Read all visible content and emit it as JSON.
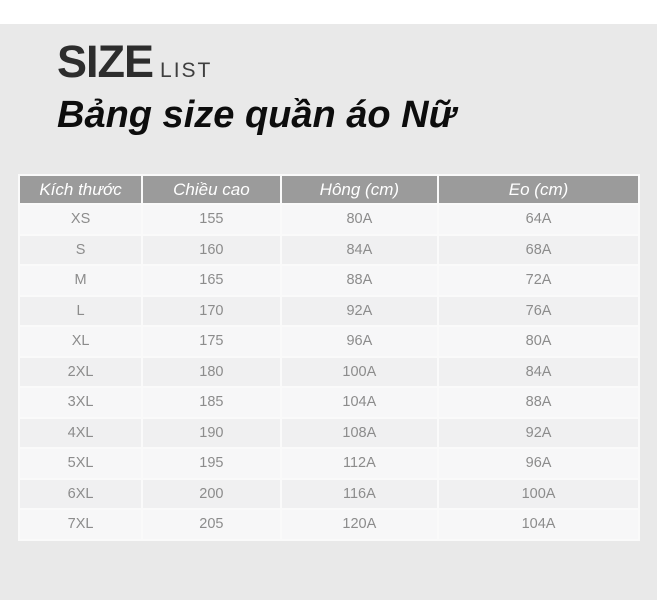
{
  "page": {
    "brand_title": "SIZE",
    "brand_subtitle": "LIST",
    "main_title": "Bảng size quần áo Nữ"
  },
  "chart_data": {
    "type": "table",
    "title": "Bảng size quần áo Nữ",
    "columns": [
      "Kích thước",
      "Chiều cao",
      "Hông (cm)",
      "Eo (cm)"
    ],
    "rows": [
      [
        "XS",
        "155",
        "80A",
        "64A"
      ],
      [
        "S",
        "160",
        "84A",
        "68A"
      ],
      [
        "M",
        "165",
        "88A",
        "72A"
      ],
      [
        "L",
        "170",
        "92A",
        "76A"
      ],
      [
        "XL",
        "175",
        "96A",
        "80A"
      ],
      [
        "2XL",
        "180",
        "100A",
        "84A"
      ],
      [
        "3XL",
        "185",
        "104A",
        "88A"
      ],
      [
        "4XL",
        "190",
        "108A",
        "92A"
      ],
      [
        "5XL",
        "195",
        "112A",
        "96A"
      ],
      [
        "6XL",
        "200",
        "116A",
        "100A"
      ],
      [
        "7XL",
        "205",
        "120A",
        "104A"
      ]
    ]
  },
  "colors": {
    "page_bg": "#e9e9e9",
    "top_strip": "#ffffff",
    "header_bg": "#9b9b9b",
    "header_text": "#ffffff",
    "row_light": "#f7f7f8",
    "row_dark": "#f0f0f1",
    "cell_text": "#8c8c8c",
    "title_text": "#2d2d2d"
  }
}
